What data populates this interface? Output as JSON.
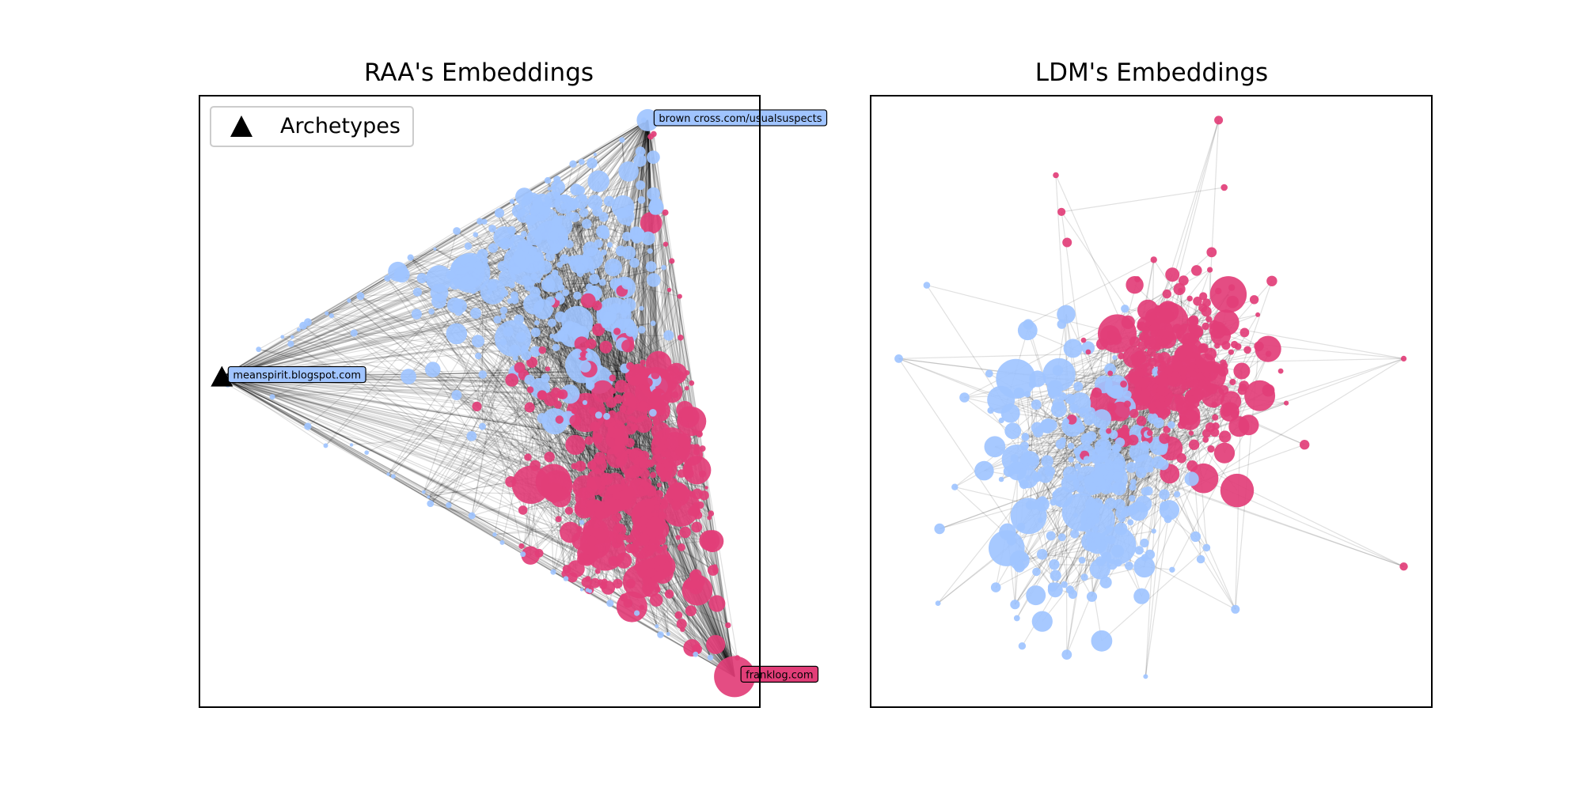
{
  "colors": {
    "cluster_a": "#a0c4ff",
    "cluster_b": "#e23e78",
    "edge": "#000000",
    "axis": "#000000",
    "annotation_box": "#a0c4ff"
  },
  "chart_data": [
    {
      "type": "scatter",
      "title": "RAA's Embeddings",
      "grid": false,
      "legend": {
        "placement": "top-left",
        "entries": [
          {
            "label": "Archetypes",
            "marker": "triangle",
            "color": "#000000"
          }
        ]
      },
      "archetypes": [
        {
          "label": "brown cross.com/usualsuspects",
          "x": 0.8,
          "y": 0.96,
          "box_color": "#a0c4ff"
        },
        {
          "label": "meanspirit.blogspot.com",
          "x": 0.04,
          "y": 0.54,
          "box_color": "#a0c4ff"
        },
        {
          "label": "franklog.com",
          "x": 0.955,
          "y": 0.05,
          "box_color": "#e23e78"
        }
      ],
      "clusters": [
        {
          "color": "#a0c4ff",
          "center": [
            0.62,
            0.72
          ],
          "spread": [
            0.13,
            0.12
          ],
          "count": 260
        },
        {
          "color": "#e23e78",
          "center": [
            0.78,
            0.35
          ],
          "spread": [
            0.1,
            0.14
          ],
          "count": 330
        }
      ],
      "edge_density": "dense"
    },
    {
      "type": "scatter",
      "title": "LDM's Embeddings",
      "grid": false,
      "clusters": [
        {
          "color": "#a0c4ff",
          "center": [
            0.38,
            0.38
          ],
          "spread": [
            0.09,
            0.1
          ],
          "count": 240
        },
        {
          "color": "#e23e78",
          "center": [
            0.55,
            0.55
          ],
          "spread": [
            0.07,
            0.07
          ],
          "count": 260
        }
      ],
      "outliers": [
        {
          "color": "#e23e78",
          "x": 0.62,
          "y": 0.96
        },
        {
          "color": "#e23e78",
          "x": 0.63,
          "y": 0.85
        },
        {
          "color": "#e23e78",
          "x": 0.33,
          "y": 0.87
        },
        {
          "color": "#e23e78",
          "x": 0.34,
          "y": 0.81
        },
        {
          "color": "#e23e78",
          "x": 0.35,
          "y": 0.76
        },
        {
          "color": "#e23e78",
          "x": 0.95,
          "y": 0.57
        },
        {
          "color": "#e23e78",
          "x": 0.95,
          "y": 0.23
        },
        {
          "color": "#a0c4ff",
          "x": 0.1,
          "y": 0.69
        },
        {
          "color": "#a0c4ff",
          "x": 0.05,
          "y": 0.57
        },
        {
          "color": "#a0c4ff",
          "x": 0.15,
          "y": 0.36
        },
        {
          "color": "#a0c4ff",
          "x": 0.12,
          "y": 0.17
        },
        {
          "color": "#a0c4ff",
          "x": 0.27,
          "y": 0.1
        },
        {
          "color": "#a0c4ff",
          "x": 0.49,
          "y": 0.05
        },
        {
          "color": "#a0c4ff",
          "x": 0.65,
          "y": 0.16
        }
      ],
      "edge_density": "sparse"
    }
  ]
}
